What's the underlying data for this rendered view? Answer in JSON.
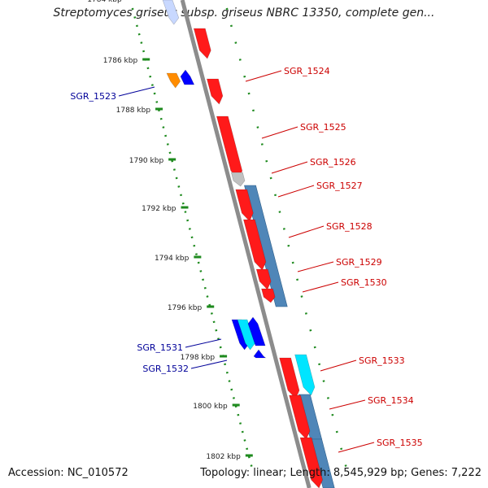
{
  "title": "Streptomyces griseus subsp. griseus NBRC 13350, complete gen...",
  "footer": {
    "accession": "Accession: NC_010572",
    "summary": "Topology: linear; Length: 8,545,929 bp; Genes: 7,222"
  },
  "colors": {
    "backbone": "#8c8c8c",
    "tick": "#1e8a1e",
    "gene_red": "#ff1a1a",
    "gene_blue": "#0000ff",
    "gene_cyan": "#00e5ff",
    "gene_orange": "#ff8c00",
    "gene_gray": "#c0c0c0",
    "operon": "#4f86b8",
    "label_right": "#cc0000",
    "label_left": "#000099"
  },
  "map": {
    "scale_labels": [
      "1784 kbp",
      "1786 kbp",
      "1788 kbp",
      "1790 kbp",
      "1792 kbp",
      "1794 kbp",
      "1796 kbp",
      "1798 kbp",
      "1800 kbp",
      "1802 kbp"
    ],
    "right_labels": [
      "SGR_1524",
      "SGR_1525",
      "SGR_1526",
      "SGR_1527",
      "SGR_1528",
      "SGR_1529",
      "SGR_1530",
      "SGR_1533",
      "SGR_1534",
      "SGR_1535"
    ],
    "left_labels": [
      "SGR_1523",
      "SGR_1531",
      "SGR_1532"
    ]
  }
}
